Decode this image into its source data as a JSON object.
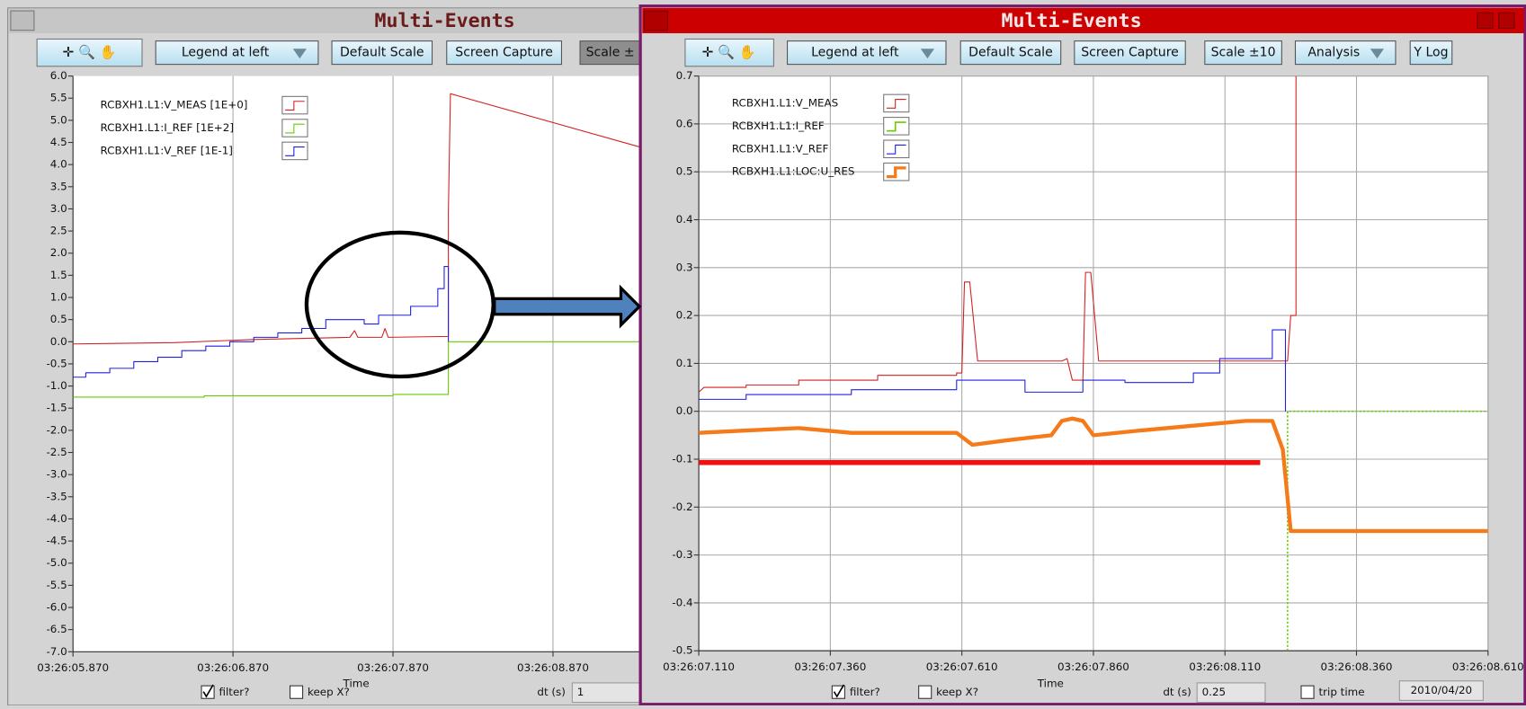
{
  "chart_data": [
    {
      "type": "line",
      "x_label": "Time",
      "legend": "upper left",
      "grid": [
        "x"
      ],
      "xlim": [
        5.87,
        9.41
      ],
      "xticks": [
        {
          "value": 5.87,
          "label": "03:26:05.870"
        },
        {
          "value": 6.87,
          "label": "03:26:06.870"
        },
        {
          "value": 7.87,
          "label": "03:26:07.870"
        },
        {
          "value": 8.87,
          "label": "03:26:08.870"
        }
      ],
      "ylim": [
        -7,
        6
      ],
      "yticks": [
        {
          "value": 6,
          "label": "6.0"
        },
        5.5,
        {
          "value": 5,
          "label": "5.0"
        },
        4.5,
        {
          "value": 4,
          "label": "4.0"
        },
        3.5,
        {
          "value": 3,
          "label": "3.0"
        },
        2.5,
        {
          "value": 2,
          "label": "2.0"
        },
        1.5,
        {
          "value": 1,
          "label": "1.0"
        },
        0.5,
        {
          "value": 0,
          "label": "0.0"
        },
        -0.5,
        {
          "value": -1,
          "label": "-1.0"
        },
        -1.5,
        {
          "value": -2,
          "label": "-2.0"
        },
        -2.5,
        {
          "value": -3,
          "label": "-3.0"
        },
        -3.5,
        {
          "value": -4,
          "label": "-4.0"
        },
        -4.5,
        {
          "value": -5,
          "label": "-5.0"
        },
        -5.5,
        {
          "value": -6,
          "label": "-6.0"
        },
        -6.5,
        {
          "value": -7,
          "label": "-7.0"
        }
      ],
      "series": [
        {
          "name": "RCBXH1.L1:V_MEAS [1E+0]",
          "color": "#d42020",
          "width": 1,
          "x": [
            5.87,
            6.5,
            7.0,
            7.6,
            7.63,
            7.65,
            7.67,
            7.8,
            7.82,
            7.84,
            8.216,
            8.216,
            8.229,
            9.41
          ],
          "values": [
            -0.05,
            -0.02,
            0.05,
            0.1,
            0.25,
            0.1,
            0.1,
            0.1,
            0.3,
            0.1,
            0.12,
            2.9,
            5.6,
            4.4
          ]
        },
        {
          "name": "RCBXH1.L1:I_REF [1E+2]",
          "color": "#66cc00",
          "width": 1,
          "x": [
            5.87,
            6.69,
            6.69,
            7.87,
            7.87,
            8.216,
            8.216,
            9.41
          ],
          "values": [
            -1.25,
            -1.25,
            -1.22,
            -1.22,
            -1.19,
            -1.19,
            0,
            0
          ]
        },
        {
          "name": "RCBXH1.L1:V_REF [1E-1]",
          "color": "#2020e0",
          "width": 1,
          "x": [
            5.87,
            5.95,
            5.95,
            6.1,
            6.1,
            6.25,
            6.25,
            6.4,
            6.4,
            6.55,
            6.55,
            6.7,
            6.7,
            6.85,
            6.85,
            7.0,
            7.0,
            7.15,
            7.15,
            7.3,
            7.3,
            7.45,
            7.45,
            7.69,
            7.69,
            7.78,
            7.78,
            7.98,
            7.98,
            8.15,
            8.15,
            8.19,
            8.19,
            8.216,
            8.216
          ],
          "values": [
            -0.8,
            -0.8,
            -0.7,
            -0.7,
            -0.6,
            -0.6,
            -0.45,
            -0.45,
            -0.35,
            -0.35,
            -0.2,
            -0.2,
            -0.1,
            -0.1,
            0,
            0,
            0.1,
            0.1,
            0.2,
            0.2,
            0.3,
            0.3,
            0.5,
            0.5,
            0.4,
            0.4,
            0.6,
            0.6,
            0.8,
            0.8,
            1.2,
            1.2,
            1.7,
            1.7,
            0
          ]
        }
      ]
    },
    {
      "type": "line",
      "x_label": "Time",
      "legend": "upper left",
      "grid": [
        "x",
        "y"
      ],
      "xlim": [
        7.11,
        8.61
      ],
      "xticks": [
        {
          "value": 7.11,
          "label": "03:26:07.110"
        },
        {
          "value": 7.36,
          "label": "03:26:07.360"
        },
        {
          "value": 7.61,
          "label": "03:26:07.610"
        },
        {
          "value": 7.86,
          "label": "03:26:07.860"
        },
        {
          "value": 8.11,
          "label": "03:26:08.110"
        },
        {
          "value": 8.36,
          "label": "03:26:08.360"
        },
        {
          "value": 8.61,
          "label": "03:26:08.610"
        }
      ],
      "ylim": [
        -0.5,
        0.7
      ],
      "yticks": [
        0.7,
        0.6,
        0.5,
        0.4,
        0.3,
        0.2,
        0.1,
        {
          "value": 0,
          "label": "0.0"
        },
        -0.1,
        -0.2,
        -0.3,
        -0.4,
        -0.5
      ],
      "series": [
        {
          "name": "RCBXH1.L1:V_MEAS",
          "color": "#d42020",
          "width": 1,
          "x": [
            7.11,
            7.12,
            7.2,
            7.2,
            7.3,
            7.3,
            7.45,
            7.45,
            7.6,
            7.6,
            7.61,
            7.615,
            7.625,
            7.64,
            7.8,
            7.81,
            7.82,
            7.84,
            7.845,
            7.855,
            7.87,
            8.229,
            8.235,
            8.245,
            8.245
          ],
          "values": [
            0.04,
            0.05,
            0.05,
            0.055,
            0.055,
            0.065,
            0.065,
            0.075,
            0.075,
            0.08,
            0.08,
            0.27,
            0.27,
            0.105,
            0.105,
            0.11,
            0.065,
            0.065,
            0.29,
            0.29,
            0.105,
            0.105,
            0.2,
            0.2,
            0.7
          ]
        },
        {
          "name": "RCBXH1.L1:I_REF",
          "color": "#66cc00",
          "width": 1.5,
          "style": "dotted",
          "x": [
            8.229,
            8.229,
            8.61
          ],
          "values": [
            -0.5,
            0,
            0
          ]
        },
        {
          "name": "RCBXH1.L1:V_REF",
          "color": "#2020e0",
          "width": 1,
          "x": [
            7.11,
            7.2,
            7.2,
            7.4,
            7.4,
            7.6,
            7.6,
            7.73,
            7.73,
            7.84,
            7.84,
            7.92,
            7.92,
            8.05,
            8.05,
            8.1,
            8.1,
            8.2,
            8.2,
            8.225,
            8.225
          ],
          "values": [
            0.025,
            0.025,
            0.035,
            0.035,
            0.045,
            0.045,
            0.065,
            0.065,
            0.04,
            0.04,
            0.065,
            0.065,
            0.06,
            0.06,
            0.08,
            0.08,
            0.11,
            0.11,
            0.17,
            0.17,
            0
          ]
        },
        {
          "name": "RCBXH1.L1:LOC:U_RES",
          "color": "#f57a1a",
          "width": 4,
          "x": [
            7.11,
            7.2,
            7.3,
            7.4,
            7.6,
            7.63,
            7.7,
            7.78,
            7.8,
            7.82,
            7.84,
            7.86,
            7.95,
            8.05,
            8.15,
            8.2,
            8.22,
            8.235,
            8.61
          ],
          "values": [
            -0.045,
            -0.04,
            -0.035,
            -0.045,
            -0.045,
            -0.07,
            -0.06,
            -0.05,
            -0.02,
            -0.015,
            -0.02,
            -0.05,
            -0.04,
            -0.03,
            -0.02,
            -0.02,
            -0.08,
            -0.25,
            -0.25
          ]
        }
      ],
      "reference_line": {
        "color": "#ee1111",
        "width": 5,
        "x": [
          7.11,
          8.177
        ],
        "values": [
          -0.107,
          -0.107
        ]
      }
    }
  ],
  "windows": [
    {
      "title": "Multi-Events",
      "buttons": [
        "Legend at left",
        "Default Scale",
        "Screen Capture",
        "Scale ±"
      ],
      "checkboxes": [
        {
          "label": "filter?",
          "checked": true
        },
        {
          "label": "keep X?",
          "checked": false
        }
      ],
      "dt_label": "dt (s)",
      "dt_value": "1"
    },
    {
      "title": "Multi-Events",
      "buttons": [
        "Legend at left",
        "Default Scale",
        "Screen Capture",
        "Scale ±10",
        "Analysis",
        "Y Log"
      ],
      "checkboxes": [
        {
          "label": "filter?",
          "checked": true
        },
        {
          "label": "keep X?",
          "checked": false
        },
        {
          "label": "trip time",
          "checked": false
        }
      ],
      "dt_label": "dt (s)",
      "dt_value": "0.25",
      "date": "2010/04/20"
    }
  ]
}
